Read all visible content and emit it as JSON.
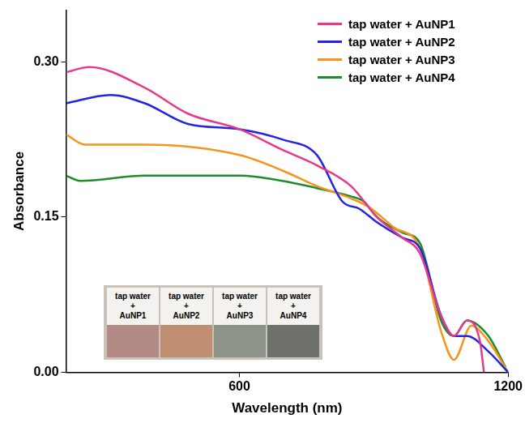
{
  "chart_data": {
    "type": "line",
    "x_label": "Wavelength (nm)",
    "y_label": "Absorbance",
    "xlim": [
      213,
      1200
    ],
    "xticks": [
      600,
      1200
    ],
    "ylim": [
      0,
      0.35
    ],
    "yticks": [
      {
        "value": 0,
        "label": "0.00"
      },
      0.15,
      {
        "value": 0.3,
        "label": "0.30"
      }
    ],
    "grid": false,
    "legend": "upper right",
    "series": [
      {
        "name": "tap water + AuNP1",
        "color": "#e8388a",
        "x": [
          213,
          265,
          389,
          485,
          600,
          696,
          773,
          849,
          907,
          964,
          1003,
          1050,
          1079,
          1108,
          1137,
          1146
        ],
        "values": [
          0.29,
          0.295,
          0.275,
          0.25,
          0.235,
          0.215,
          0.2,
          0.18,
          0.15,
          0.13,
          0.115,
          0.055,
          0.035,
          0.05,
          0.03,
          0
        ]
      },
      {
        "name": "tap water + AuNP2",
        "color": "#2323e0",
        "x": [
          213,
          312,
          389,
          485,
          600,
          696,
          773,
          830,
          868,
          907,
          964,
          1003,
          1050,
          1079,
          1108,
          1156,
          1200
        ],
        "values": [
          0.26,
          0.268,
          0.26,
          0.24,
          0.235,
          0.225,
          0.21,
          0.165,
          0.158,
          0.145,
          0.13,
          0.12,
          0.055,
          0.035,
          0.035,
          0.02,
          0
        ]
      },
      {
        "name": "tap water + AuNP3",
        "color": "#f7941d",
        "x": [
          213,
          255,
          389,
          600,
          696,
          773,
          849,
          888,
          945,
          1003,
          1050,
          1079,
          1118,
          1156,
          1200
        ],
        "values": [
          0.23,
          0.22,
          0.22,
          0.21,
          0.195,
          0.18,
          0.168,
          0.16,
          0.14,
          0.12,
          0.04,
          0.012,
          0.045,
          0.03,
          0
        ]
      },
      {
        "name": "tap water + AuNP4",
        "color": "#1e8c2a",
        "x": [
          213,
          245,
          389,
          600,
          696,
          773,
          849,
          878,
          907,
          964,
          1003,
          1050,
          1079,
          1108,
          1156,
          1194
        ],
        "values": [
          0.19,
          0.185,
          0.19,
          0.19,
          0.185,
          0.178,
          0.17,
          0.165,
          0.15,
          0.135,
          0.125,
          0.05,
          0.035,
          0.05,
          0.035,
          0.005
        ]
      }
    ],
    "annotations": [
      "tap water\n+\nAuNP1",
      "tap water\n+\nAuNP2",
      "tap water\n+\nAuNP3",
      "tap water\n+\nAuNP4"
    ]
  }
}
